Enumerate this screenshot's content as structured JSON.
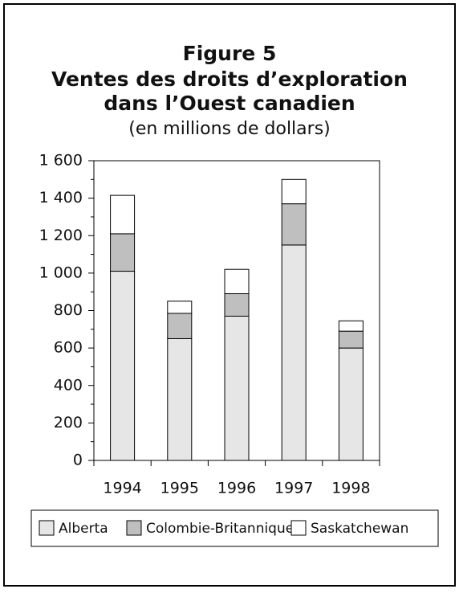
{
  "chart_data": {
    "type": "stacked-bar",
    "title": "Figure 5",
    "subtitle": [
      "Ventes des droits d’exploration",
      "dans l’Ouest canadien"
    ],
    "y_label": "(en millions de dollars)",
    "categories": [
      "1994",
      "1995",
      "1996",
      "1997",
      "1998"
    ],
    "series": [
      {
        "name": "Alberta",
        "color": "#e6e6e6",
        "values": [
          1010,
          650,
          770,
          1150,
          600
        ]
      },
      {
        "name": "Colombie-Britannique",
        "color": "#bfbfbf",
        "values": [
          200,
          135,
          120,
          220,
          90
        ]
      },
      {
        "name": "Saskatchewan",
        "color": "#ffffff",
        "values": [
          205,
          65,
          130,
          130,
          55
        ]
      }
    ],
    "ylim": [
      0,
      1600
    ],
    "yticks": [
      0,
      200,
      400,
      600,
      800,
      {
        "value": 1000,
        "label": "1 000"
      },
      {
        "value": 1200,
        "label": "1 200"
      },
      {
        "value": 1400,
        "label": "1 400"
      },
      {
        "value": 1600,
        "label": "1 600"
      }
    ],
    "grid": false,
    "legend": "bottom"
  }
}
